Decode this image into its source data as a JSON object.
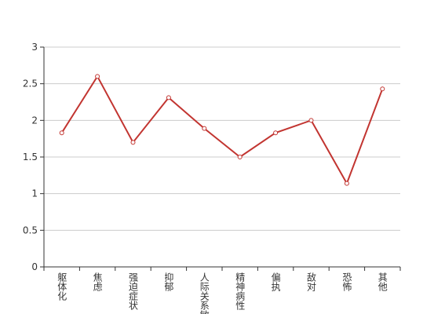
{
  "chart_data": {
    "type": "line",
    "categories": [
      "躯体化",
      "焦虑",
      "强迫症状",
      "抑郁",
      "人际关系敏感",
      "精神病性",
      "偏执",
      "敌对",
      "恐怖",
      "其他"
    ],
    "values": [
      1.83,
      2.6,
      1.7,
      2.31,
      1.89,
      1.5,
      1.83,
      2.0,
      1.14,
      2.43
    ],
    "color": "#c23531",
    "ylim": [
      0,
      3
    ],
    "yticks": [
      0,
      0.5,
      1,
      1.5,
      2,
      2.5,
      3
    ],
    "grid": true
  }
}
